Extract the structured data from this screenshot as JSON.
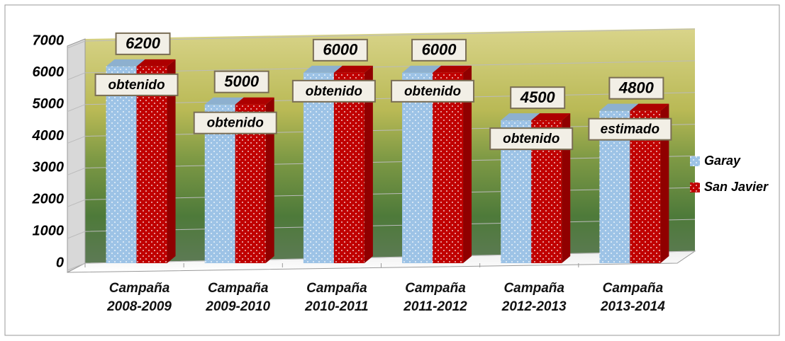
{
  "chart_data": {
    "type": "bar3d",
    "categories": [
      "Campaña 2008-2009",
      "Campaña 2009-2010",
      "Campaña 2010-2011",
      "Campaña 2011-2012",
      "Campaña 2012-2013",
      "Campaña 2013-2014"
    ],
    "series": [
      {
        "name": "Garay",
        "color": "#9dc3e6",
        "values": [
          6200,
          5000,
          6000,
          6000,
          4500,
          4800
        ]
      },
      {
        "name": "San Javier",
        "color": "#c00000",
        "values": [
          6200,
          5000,
          6000,
          6000,
          4500,
          4800
        ]
      }
    ],
    "annotations": [
      "obtenido",
      "obtenido",
      "obtenido",
      "obtenido",
      "obtenido",
      "estimado"
    ],
    "ylim": [
      0,
      7000
    ],
    "yticks": [
      0,
      1000,
      2000,
      3000,
      4000,
      5000,
      6000,
      7000
    ],
    "grid": true,
    "legend": "right"
  }
}
